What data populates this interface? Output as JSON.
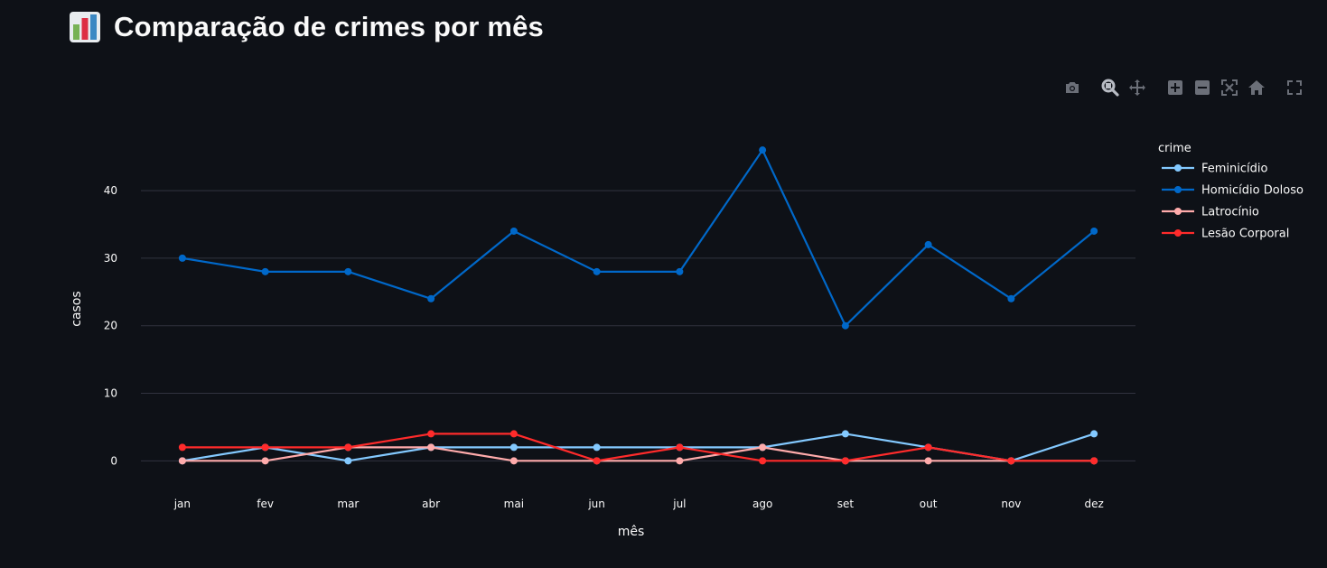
{
  "page": {
    "title": "Comparação de crimes por mês",
    "title_icon": "bar-chart-emoji-icon"
  },
  "modebar": {
    "buttons": [
      "camera-icon",
      "zoom-icon",
      "pan-icon",
      "zoom-in-icon",
      "zoom-out-icon",
      "autoscale-icon",
      "reset-axes-icon",
      "fullscreen-icon"
    ],
    "icon_color": "#6b6f78",
    "active_color": "#b8bcc4"
  },
  "chart_data": {
    "type": "line",
    "xlabel": "mês",
    "ylabel": "casos",
    "categories": [
      "jan",
      "fev",
      "mar",
      "abr",
      "mai",
      "jun",
      "jul",
      "ago",
      "set",
      "out",
      "nov",
      "dez"
    ],
    "ylim": [
      -4.5,
      49.5
    ],
    "yticks": [
      0,
      10,
      20,
      30,
      40
    ],
    "grid": true,
    "legend": {
      "title": "crime",
      "position": "right"
    },
    "series": [
      {
        "name": "Feminicídio",
        "color": "#83c9ff",
        "values": [
          0,
          2,
          0,
          2,
          2,
          2,
          2,
          2,
          4,
          2,
          0,
          4
        ]
      },
      {
        "name": "Homicídio Doloso",
        "color": "#0068c9",
        "values": [
          30,
          28,
          28,
          24,
          34,
          28,
          28,
          46,
          20,
          32,
          24,
          34
        ]
      },
      {
        "name": "Latrocínio",
        "color": "#ffabab",
        "values": [
          0,
          0,
          2,
          2,
          0,
          0,
          0,
          2,
          0,
          0,
          0,
          0
        ]
      },
      {
        "name": "Lesão Corporal",
        "color": "#ff2b2b",
        "values": [
          2,
          2,
          2,
          4,
          4,
          0,
          2,
          0,
          0,
          2,
          0,
          0
        ]
      }
    ]
  }
}
